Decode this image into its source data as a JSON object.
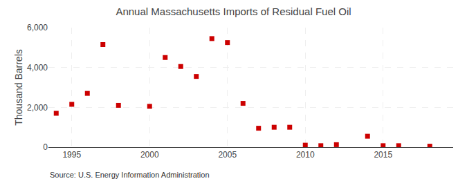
{
  "chart_data": {
    "type": "scatter",
    "title": "Annual Massachusetts Imports of Residual Fuel Oil",
    "ylabel": "Thousand Barrels",
    "annotations": [
      "Source: U.S. Energy Information Administration"
    ],
    "x": [
      1994,
      1995,
      1996,
      1997,
      1998,
      2000,
      2001,
      2002,
      2003,
      2004,
      2005,
      2006,
      2007,
      2008,
      2009,
      2010,
      2011,
      2012,
      2014,
      2015,
      2016,
      2018
    ],
    "values": [
      1700,
      2150,
      2700,
      5150,
      2100,
      2050,
      4500,
      4050,
      3550,
      5450,
      5250,
      2200,
      950,
      1000,
      1000,
      100,
      75,
      125,
      550,
      75,
      75,
      50
    ],
    "color": "#cc0000",
    "marker": "square",
    "xlim": [
      1993.5,
      2019.5
    ],
    "xticks": [
      1995,
      2000,
      2005,
      2010,
      2015
    ],
    "ylim": [
      0,
      6000
    ],
    "yticks": [
      0,
      {
        "value": 2000,
        "label": "2,000"
      },
      {
        "value": 4000,
        "label": "4,000"
      },
      {
        "value": 6000,
        "label": "6,000"
      }
    ],
    "grid": true
  }
}
